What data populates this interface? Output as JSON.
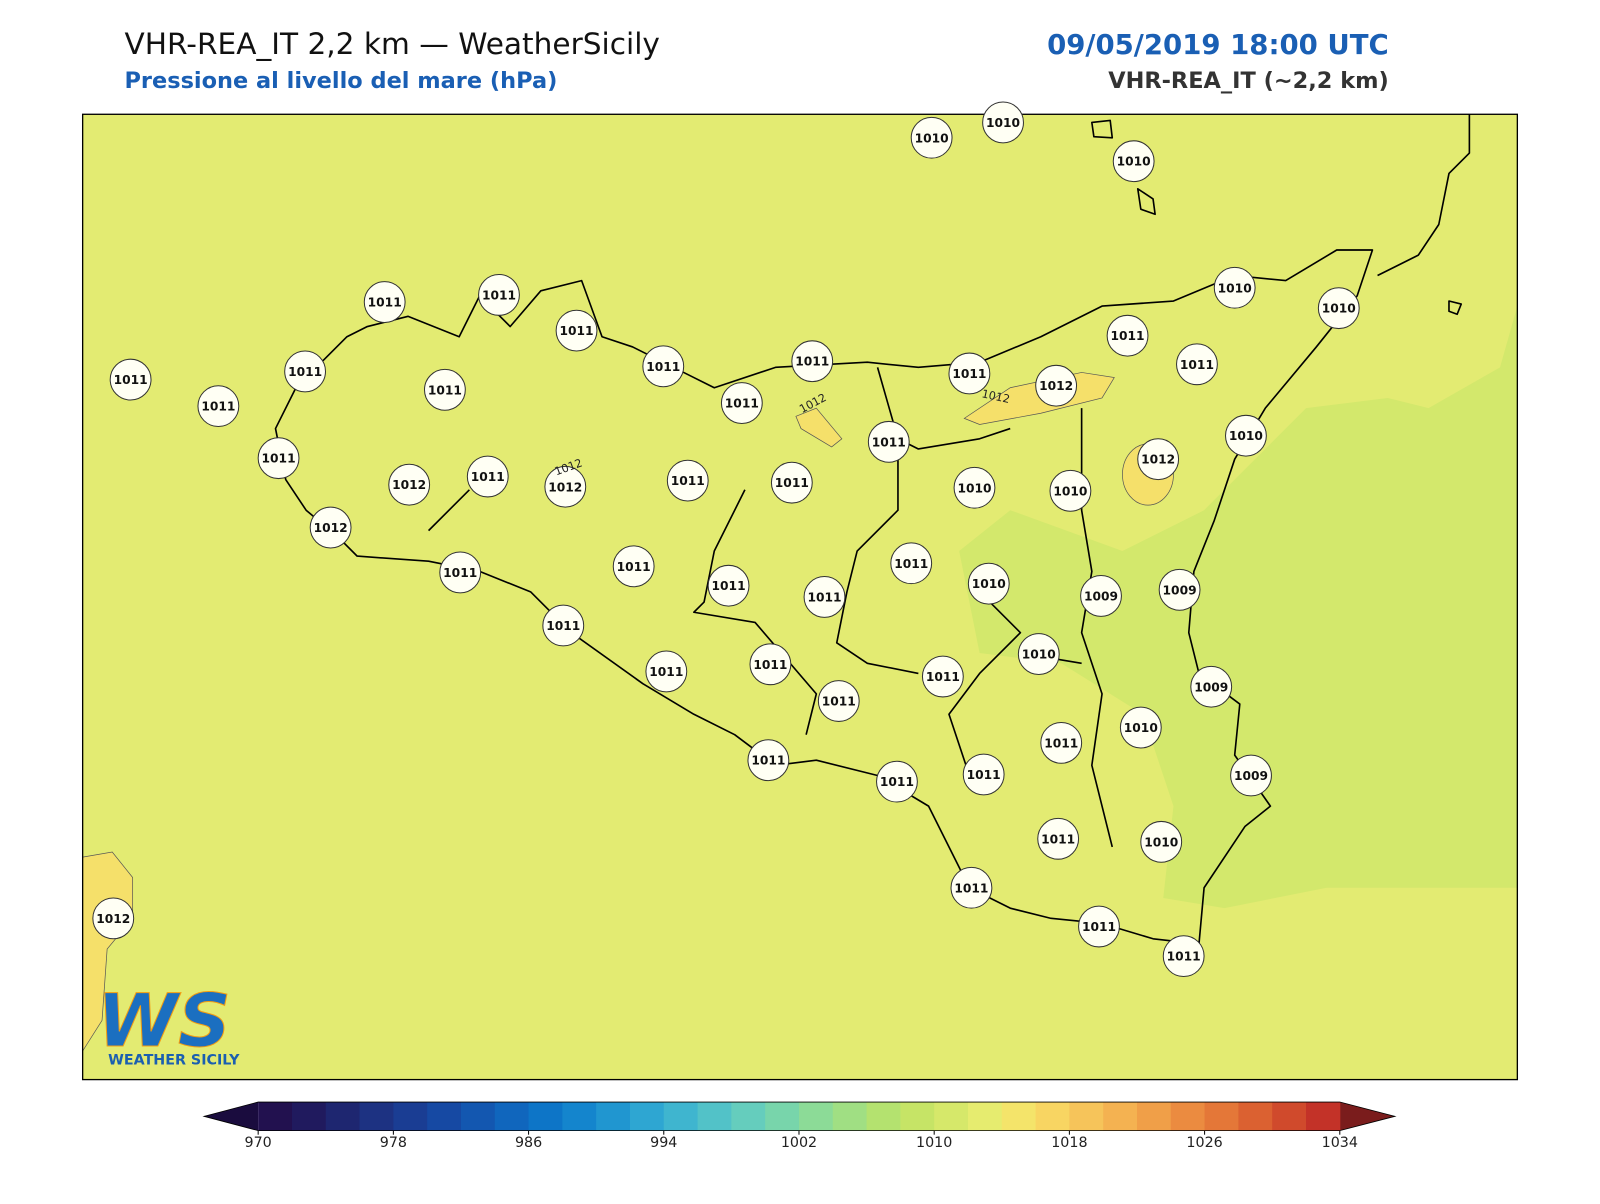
{
  "header": {
    "title": "VHR-REA_IT 2,2 km — WeatherSicily",
    "subtitle": "Pressione al livello del mare (hPa)",
    "datetime": "09/05/2019 18:00 UTC",
    "model": "VHR-REA_IT (~2,2 km)"
  },
  "stations": [
    1010,
    1010,
    1010,
    1011,
    1011,
    1011,
    1011,
    1011,
    1011,
    1011,
    1011,
    1011,
    1011,
    1011,
    1012,
    1011,
    1011,
    1010,
    1010,
    1010,
    1011,
    1012,
    1011,
    1012,
    1011,
    1011,
    1011,
    1010,
    1010,
    1012,
    1012,
    1011,
    1011,
    1011,
    1011,
    1011,
    1010,
    1009,
    1009,
    1011,
    1011,
    1011,
    1011,
    1011,
    1010,
    1009,
    1010,
    1011,
    1011,
    1011,
    1011,
    1009,
    1011,
    1010,
    1011,
    1011,
    1011,
    1012
  ],
  "contour_labels": [
    "1012",
    "1012",
    "1012"
  ],
  "logo": {
    "mark": "WS",
    "name": "WEATHER SICILY"
  },
  "colorbar": {
    "range": [
      970,
      1034
    ],
    "ticks": [
      970,
      978,
      986,
      994,
      1002,
      1010,
      1018,
      1026,
      1034
    ],
    "under_color": "#1a0c3e",
    "over_color": "#7a1c1c",
    "colors": [
      "#22114f",
      "#201a5e",
      "#1e2670",
      "#1d3282",
      "#1a3d93",
      "#1649a3",
      "#1357b0",
      "#1066bd",
      "#0d75c7",
      "#1485cd",
      "#2096d0",
      "#2ea6d2",
      "#3fb5cf",
      "#52c2c8",
      "#65cdbd",
      "#78d5ab",
      "#8cdb97",
      "#a0df83",
      "#b4e26f",
      "#c6e466",
      "#d6e86a",
      "#e6ec6f",
      "#f4e46a",
      "#f8d562",
      "#f6c45a",
      "#f4b251",
      "#f09f48",
      "#eb8b40",
      "#e47738",
      "#db6131",
      "#d04a2c",
      "#c33228"
    ]
  }
}
